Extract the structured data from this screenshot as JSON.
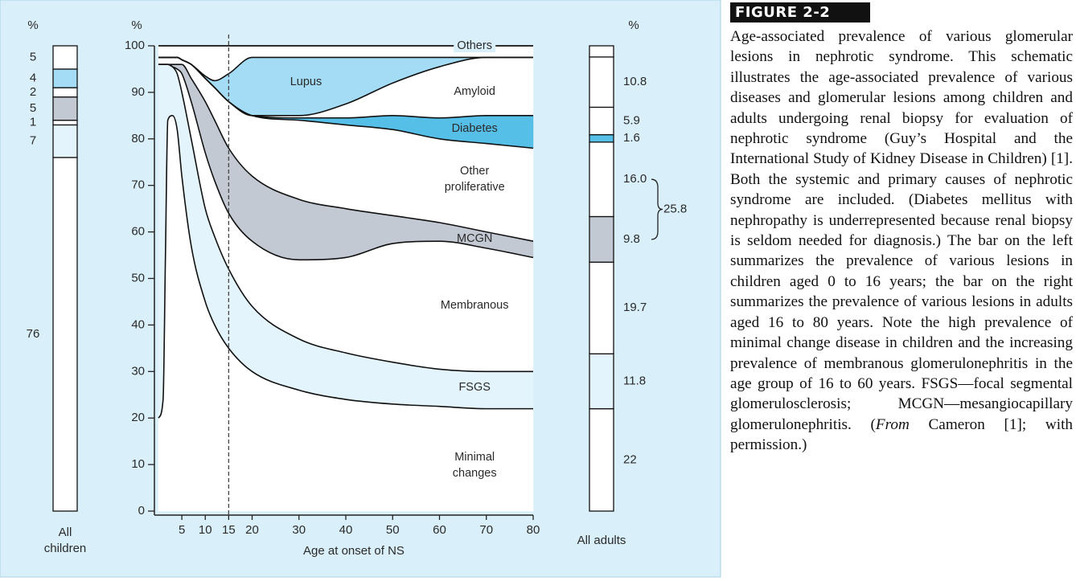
{
  "chart_data": [
    {
      "type": "area",
      "stacked": true,
      "xlabel": "Age at onset of NS",
      "ylabel": "%",
      "x": [
        0,
        1,
        1.5,
        2,
        3,
        4,
        5,
        7,
        10,
        12,
        15,
        20,
        30,
        40,
        50,
        60,
        70,
        80
      ],
      "series": [
        {
          "name": "Minimal changes",
          "color": "#ffffff",
          "values": [
            20,
            24,
            55,
            84,
            85,
            82,
            72,
            57,
            45,
            40,
            35,
            30,
            26,
            24,
            23,
            22.5,
            22,
            22
          ]
        },
        {
          "name": "FSGS",
          "color": "#e4f4fc",
          "values": [
            76,
            72,
            41,
            12,
            10.5,
            12,
            18,
            23,
            20,
            19,
            17,
            14,
            11,
            10,
            9,
            8,
            8,
            8
          ]
        },
        {
          "name": "Membranous",
          "color": "#ffffff",
          "values": [
            0,
            0,
            0,
            0,
            0,
            1,
            4,
            8,
            12,
            12,
            12,
            14,
            17,
            20.5,
            25.5,
            27.5,
            26.5,
            24.5
          ]
        },
        {
          "name": "MCGN",
          "color": "#c2c9d3",
          "values": [
            0,
            0,
            0,
            0,
            0.5,
            1,
            2,
            5,
            11,
            13,
            14,
            14,
            13,
            10.5,
            6,
            4,
            3.5,
            3.5
          ]
        },
        {
          "name": "Other proliferative",
          "color": "#ffffff",
          "values": [
            1.5,
            1.5,
            1.5,
            1.5,
            1.5,
            1.5,
            1,
            3,
            5,
            7,
            10,
            13,
            17,
            18,
            18.5,
            18,
            19,
            20
          ]
        },
        {
          "name": "Diabetes",
          "color": "#55bfe8",
          "values": [
            0,
            0,
            0,
            0,
            0,
            0,
            0,
            0,
            0,
            0,
            0,
            0,
            0.5,
            1.5,
            3,
            4.5,
            6,
            7
          ]
        },
        {
          "name": "Amyloid",
          "color": "#ffffff",
          "values": [
            0,
            0,
            0,
            0,
            0,
            0,
            0,
            0,
            0,
            0,
            0,
            0,
            0.5,
            3,
            7,
            11,
            12.5,
            12.5
          ]
        },
        {
          "name": "Lupus",
          "color": "#a3dcf4",
          "values": [
            0,
            0,
            0,
            0,
            0,
            0,
            0,
            0,
            0.5,
            1.5,
            6,
            12.5,
            12.5,
            10,
            5.5,
            2,
            0,
            0
          ]
        },
        {
          "name": "Others",
          "color": "#ffffff",
          "values": [
            2.5,
            2.5,
            2.5,
            2.5,
            2.5,
            2.5,
            3,
            4,
            6.5,
            7.5,
            6,
            2.5,
            2.5,
            2.5,
            2.5,
            2.5,
            2.5,
            2.5
          ]
        }
      ],
      "xlim": [
        0,
        80
      ],
      "ylim": [
        0,
        100
      ],
      "xticks": [
        5,
        10,
        15,
        20,
        30,
        40,
        50,
        60,
        70,
        80
      ],
      "yticks": [
        0,
        10,
        20,
        30,
        40,
        50,
        60,
        70,
        80,
        90,
        100
      ],
      "vline": 15
    },
    {
      "type": "stacked-column",
      "category": "All children",
      "ylabel": "%",
      "ylim": [
        0,
        100
      ],
      "values": [
        76,
        7,
        1,
        5,
        2,
        4,
        5
      ],
      "colors": [
        "#ffffff",
        "#e4f4fc",
        "#ffffff",
        "#c2c9d3",
        "#ffffff",
        "#a3dcf4",
        "#ffffff"
      ]
    },
    {
      "type": "stacked-column",
      "category": "All adults",
      "ylabel": "%",
      "ylim": [
        0,
        100
      ],
      "values": [
        22,
        11.8,
        19.7,
        9.8,
        16,
        1.6,
        5.9,
        10.8,
        2.4
      ],
      "value_labels": [
        "22",
        "11.8",
        "19.7",
        "9.8",
        "16.0",
        "1.6",
        "5.9",
        "10.8",
        null
      ],
      "colors": [
        "#ffffff",
        "#e4f4fc",
        "#ffffff",
        "#c2c9d3",
        "#ffffff",
        "#55bfe8",
        "#ffffff",
        "#ffffff",
        "#ffffff"
      ],
      "bracket_total": 25.8
    }
  ],
  "caption": {
    "label": "FIGURE 2-2",
    "text": "Age-associated prevalence of various glomerular lesions in nephrotic syndrome. This schematic illustrates the age-associated prevalence of various diseases and glomerular lesions among children and adults undergoing renal biopsy for evaluation of nephrotic syndrome (Guy’s Hospital and the International Study of Kidney Disease in Children) [1]. Both the systemic and primary causes of nephrotic syndrome are included. (Diabetes mellitus with nephropathy is underrepresented because renal biopsy is seldom needed for diagnosis.) The bar on the left summarizes the prevalence of various lesions in children aged 0 to 16 years; the bar on the right summarizes the prevalence of various lesions in adults aged 16 to 80 years. Note the high prevalence of minimal change disease in children and the increasing prevalence of membranous glomerulonephritis in the age group of 16 to 60 years. FSGS—focal segmental glomerulosclerosis; MCGN—mesangiocapillary glomerulonephritis. (",
    "italic": "From",
    "tail": " Cameron [1]; with permission.)"
  }
}
